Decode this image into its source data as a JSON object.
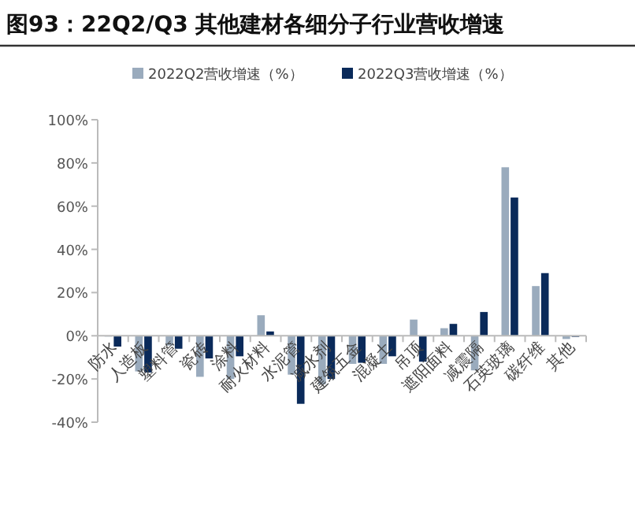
{
  "chart_data": {
    "type": "bar",
    "title": "图93：22Q2/Q3 其他建材各细分子行业营收增速",
    "categories": [
      "防水",
      "人造板",
      "塑料管",
      "瓷砖",
      "涂料",
      "耐火材料",
      "水泥管",
      "减水剂",
      "建筑五金",
      "混凝土",
      "吊顶",
      "遮阳面料",
      "减震隔",
      "石英玻璃",
      "碳纤维",
      "其他"
    ],
    "series": [
      {
        "name": "2022Q2营收增速（%）",
        "color": "#9aabbd",
        "values": [
          0,
          -16.5,
          -4.5,
          -19,
          -20,
          9.5,
          -18,
          -22.5,
          -13,
          -13,
          7.5,
          3.5,
          -16,
          78,
          23,
          -1.5
        ]
      },
      {
        "name": "2022Q3营收增速（%）",
        "color": "#0a2a5a",
        "values": [
          -5,
          -17,
          -6,
          -10.5,
          -9.5,
          2,
          -31.5,
          -20,
          -12.5,
          -9.5,
          -12,
          5.5,
          11,
          64,
          29,
          -0.5
        ]
      }
    ],
    "ylim": [
      -40,
      100
    ],
    "yticks": [
      {
        "value": -40,
        "label": "-40%"
      },
      {
        "value": -20,
        "label": "-20%"
      },
      {
        "value": 0,
        "label": "0%"
      },
      {
        "value": 20,
        "label": "20%"
      },
      {
        "value": 40,
        "label": "40%"
      },
      {
        "value": 60,
        "label": "60%"
      },
      {
        "value": 80,
        "label": "80%"
      },
      {
        "value": 100,
        "label": "100%"
      }
    ],
    "grid": false,
    "legend": "top"
  }
}
